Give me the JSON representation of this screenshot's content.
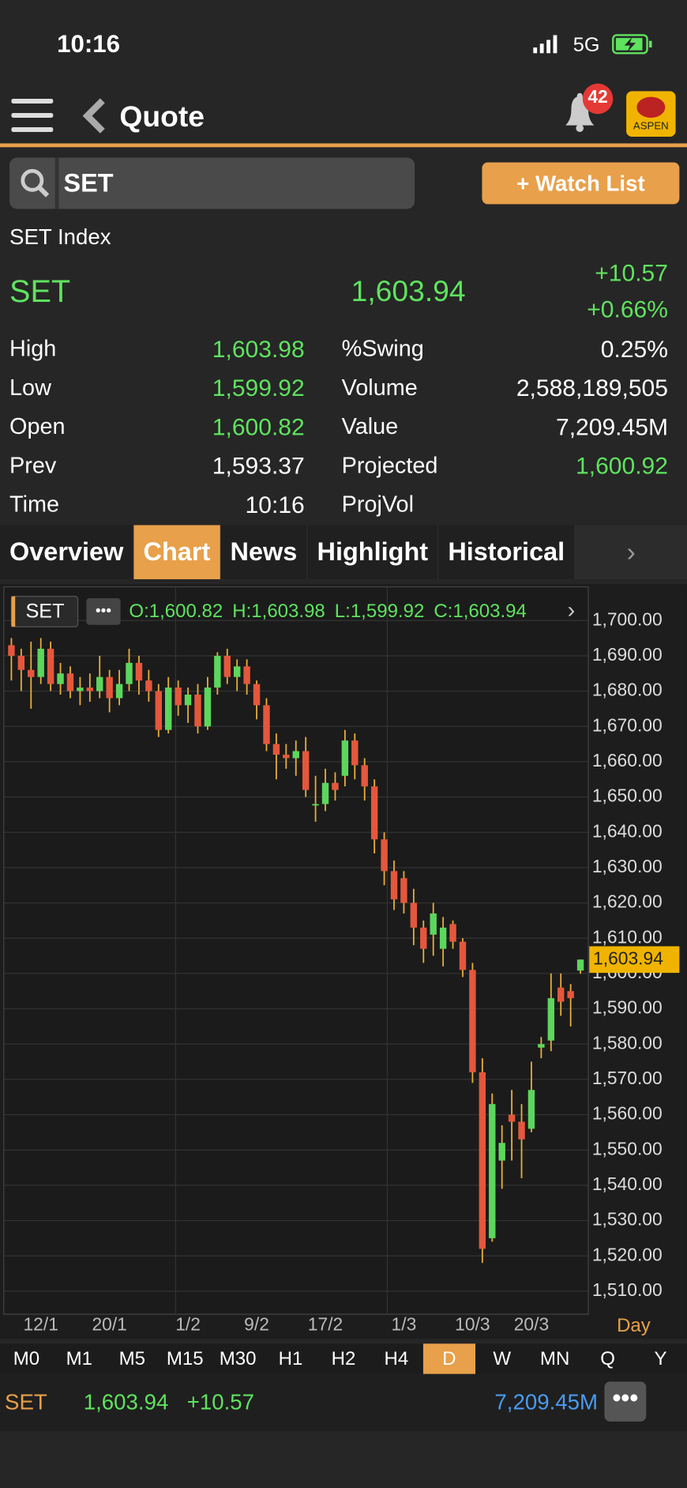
{
  "status_bar": {
    "time": "10:16",
    "network": "5G"
  },
  "nav": {
    "title": "Quote",
    "badge": "42",
    "logo": "ASPEN"
  },
  "search": {
    "query": "SET",
    "button": "+ Watch List"
  },
  "quote": {
    "name": "SET Index",
    "symbol": "SET",
    "last": "1,603.94",
    "change": "+10.57",
    "change_pct": "+0.66%",
    "left": [
      {
        "label": "High",
        "value": "1,603.98",
        "up": true
      },
      {
        "label": "Low",
        "value": "1,599.92",
        "up": true
      },
      {
        "label": "Open",
        "value": "1,600.82",
        "up": true
      },
      {
        "label": "Prev",
        "value": "1,593.37",
        "up": false
      },
      {
        "label": "Time",
        "value": "10:16",
        "up": false
      }
    ],
    "right": [
      {
        "label": "%Swing",
        "value": "0.25%",
        "up": false
      },
      {
        "label": "Volume",
        "value": "2,588,189,505",
        "up": false
      },
      {
        "label": "Value",
        "value": "7,209.45M",
        "up": false
      },
      {
        "label": "Projected",
        "value": "1,600.92",
        "up": true
      },
      {
        "label": "ProjVol"
      }
    ]
  },
  "tabs": {
    "items": [
      "Overview",
      "Chart",
      "News",
      "Highlight",
      "Historical"
    ],
    "selected": 1
  },
  "chart_data": {
    "type": "candlestick",
    "symbol": "SET",
    "ohlc_text": [
      "O:1,600.82",
      "H:1,603.98",
      "L:1,599.92",
      "C:1,603.94"
    ],
    "categories": [
      null,
      null,
      null,
      "12/1",
      null,
      null,
      null,
      null,
      null,
      null,
      "20/1",
      null,
      null,
      null,
      null,
      null,
      null,
      null,
      "1/2",
      null,
      null,
      null,
      null,
      null,
      null,
      "9/2",
      null,
      null,
      null,
      null,
      null,
      null,
      "17/2",
      null,
      null,
      null,
      null,
      null,
      null,
      null,
      "1/3",
      null,
      null,
      null,
      null,
      null,
      null,
      "10/3",
      null,
      null,
      null,
      null,
      null,
      "20/3",
      null,
      null,
      null,
      null,
      null
    ],
    "open": [
      1693,
      1690,
      1686,
      1684,
      1692,
      1682,
      1685,
      1680,
      1681,
      1680,
      1684,
      1678,
      1682,
      1688,
      1683,
      1680,
      1669,
      1681,
      1676,
      1679,
      1670,
      1681,
      1690,
      1684,
      1687,
      1682,
      1676,
      1665,
      1662,
      1661,
      1663,
      1648,
      1648,
      1654,
      1656,
      1666,
      1659,
      1653,
      1638,
      1629,
      1627,
      1620,
      1613,
      1611,
      1607,
      1614,
      1609,
      1601,
      1572,
      1525,
      1547,
      1560,
      1558,
      1556,
      1579,
      1581,
      1596,
      1595,
      1600.82
    ],
    "high": [
      1695,
      1692,
      1694,
      1695,
      1694,
      1688,
      1687,
      1684,
      1685,
      1690,
      1686,
      1686,
      1692,
      1690,
      1686,
      1682,
      1684,
      1683,
      1681,
      1682,
      1684,
      1691,
      1692,
      1689,
      1689,
      1683,
      1678,
      1668,
      1665,
      1666,
      1667,
      1656,
      1658,
      1657,
      1669,
      1668,
      1661,
      1655,
      1640,
      1632,
      1629,
      1624,
      1615,
      1620,
      1616,
      1615,
      1610,
      1603,
      1576,
      1566,
      1557,
      1567,
      1563,
      1575,
      1582,
      1600,
      1600,
      1597,
      1603.98
    ],
    "low": [
      1683,
      1680,
      1675,
      1682,
      1680,
      1679,
      1678,
      1676,
      1677,
      1678,
      1674,
      1676,
      1680,
      1679,
      1677,
      1667,
      1668,
      1673,
      1671,
      1668,
      1669,
      1679,
      1682,
      1680,
      1679,
      1672,
      1663,
      1655,
      1658,
      1656,
      1650,
      1643,
      1646,
      1649,
      1653,
      1655,
      1649,
      1634,
      1625,
      1618,
      1617,
      1608,
      1603,
      1605,
      1602,
      1607,
      1599,
      1569,
      1518,
      1524,
      1539,
      1547,
      1542,
      1555,
      1576,
      1578,
      1588,
      1585,
      1599.92
    ],
    "close": [
      1690,
      1686,
      1684,
      1692,
      1682,
      1685,
      1680,
      1681,
      1680,
      1684,
      1678,
      1682,
      1688,
      1683,
      1680,
      1669,
      1681,
      1676,
      1679,
      1670,
      1681,
      1690,
      1684,
      1687,
      1682,
      1676,
      1665,
      1662,
      1661,
      1663,
      1652,
      1648,
      1654,
      1652,
      1666,
      1659,
      1653,
      1638,
      1629,
      1621,
      1620,
      1613,
      1607,
      1617,
      1613,
      1609,
      1601,
      1572,
      1522,
      1563,
      1552,
      1558,
      1553,
      1567,
      1580,
      1593,
      1592,
      1593,
      1603.94
    ],
    "ylim": [
      1504,
      1709
    ],
    "yticks": [
      {
        "value": 1510,
        "label": "1,510.00"
      },
      {
        "value": 1520,
        "label": "1,520.00"
      },
      {
        "value": 1530,
        "label": "1,530.00"
      },
      {
        "value": 1540,
        "label": "1,540.00"
      },
      {
        "value": 1550,
        "label": "1,550.00"
      },
      {
        "value": 1560,
        "label": "1,560.00"
      },
      {
        "value": 1570,
        "label": "1,570.00"
      },
      {
        "value": 1580,
        "label": "1,580.00"
      },
      {
        "value": 1590,
        "label": "1,590.00"
      },
      {
        "value": 1600,
        "label": "1,600.00"
      },
      {
        "value": 1610,
        "label": "1,610.00"
      },
      {
        "value": 1620,
        "label": "1,620.00"
      },
      {
        "value": 1630,
        "label": "1,630.00"
      },
      {
        "value": 1640,
        "label": "1,640.00"
      },
      {
        "value": 1650,
        "label": "1,650.00"
      },
      {
        "value": 1660,
        "label": "1,660.00"
      },
      {
        "value": 1670,
        "label": "1,670.00"
      },
      {
        "value": 1680,
        "label": "1,680.00"
      },
      {
        "value": 1690,
        "label": "1,690.00"
      },
      {
        "value": 1700,
        "label": "1,700.00"
      }
    ],
    "last_price": {
      "value": 1603.94,
      "label": "1,603.94"
    },
    "period_label": "Day",
    "up_color": "#5cd65c",
    "down_color": "#e4573c",
    "wick_color": "#e8ae3a",
    "grid": true
  },
  "timeframes": {
    "items": [
      "M0",
      "M1",
      "M5",
      "M15",
      "M30",
      "H1",
      "H2",
      "H4",
      "D",
      "W",
      "MN",
      "Q",
      "Y"
    ],
    "selected": 8
  },
  "footer": {
    "symbol": "SET",
    "last": "1,603.94",
    "change": "+10.57",
    "value": "7,209.45M"
  }
}
